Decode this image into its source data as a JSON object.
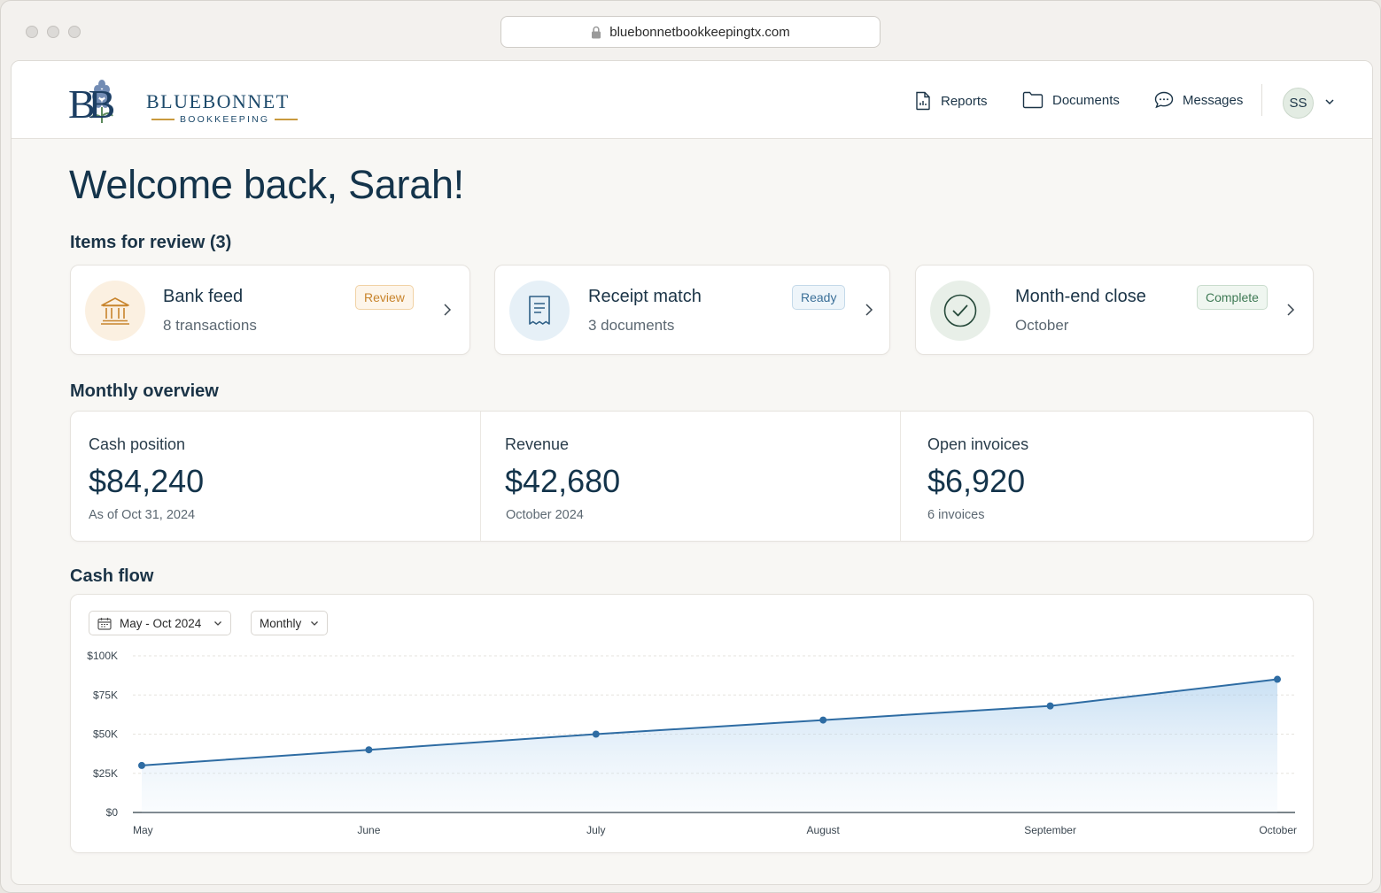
{
  "browser": {
    "url": "bluebonnetbookkeepingtx.com"
  },
  "brand": {
    "name": "BLUEBONNET",
    "subtitle": "BOOKKEEPING",
    "monogram": "BB"
  },
  "nav": {
    "items": [
      {
        "label": "Reports",
        "icon": "report-icon"
      },
      {
        "label": "Documents",
        "icon": "folder-icon"
      },
      {
        "label": "Messages",
        "icon": "chat-icon"
      }
    ],
    "user_initials": "SS"
  },
  "welcome": "Welcome back, Sarah!",
  "review": {
    "title": "Items for review (3)",
    "items": [
      {
        "title": "Bank feed",
        "subtitle": "8 transactions",
        "badge": "Review",
        "icon": "bank-icon"
      },
      {
        "title": "Receipt match",
        "subtitle": "3 documents",
        "badge": "Ready",
        "icon": "receipt-icon"
      },
      {
        "title": "Month-end close",
        "subtitle": "October",
        "badge": "Complete",
        "icon": "check-circle-icon"
      }
    ]
  },
  "overview": {
    "title": "Monthly overview",
    "metrics": [
      {
        "label": "Cash position",
        "value": "$84,240",
        "sub": "As of Oct 31, 2024"
      },
      {
        "label": "Revenue",
        "value": "$42,680",
        "sub": "October 2024"
      },
      {
        "label": "Open invoices",
        "value": "$6,920",
        "sub": "6 invoices"
      }
    ]
  },
  "cashflow": {
    "title": "Cash flow",
    "range_label": "May - Oct 2024",
    "period_label": "Monthly"
  },
  "colors": {
    "line": "#2e6ca3",
    "review_badge": "#c8842c",
    "ready_badge": "#3a6f98",
    "complete_badge": "#3f7a55"
  },
  "chart_data": {
    "type": "area",
    "categories": [
      "May",
      "June",
      "July",
      "August",
      "September",
      "October"
    ],
    "values": [
      30000,
      40000,
      50000,
      59000,
      68000,
      85000
    ],
    "y_ticks": [
      "$0",
      "$25K",
      "$50K",
      "$75K",
      "$100K"
    ],
    "ylim": [
      0,
      100000
    ],
    "grid": true,
    "title": "",
    "xlabel": "",
    "ylabel": ""
  }
}
